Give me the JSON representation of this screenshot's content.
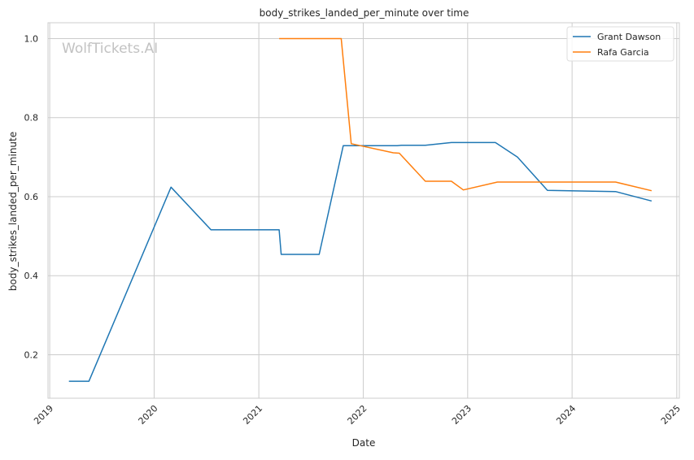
{
  "chart_data": {
    "type": "line",
    "title": "body_strikes_landed_per_minute over time",
    "xlabel": "Date",
    "ylabel": "body_strikes_landed_per_minute",
    "x_tick_labels": [
      "2019",
      "2020",
      "2021",
      "2022",
      "2023",
      "2024",
      "2025"
    ],
    "y_tick_labels": [
      "0.2",
      "0.4",
      "0.6",
      "0.8",
      "1.0"
    ],
    "y_ticks": [
      0.2,
      0.4,
      0.6,
      0.8,
      1.0
    ],
    "xlim": [
      "2018-12-26",
      "2025-01-10"
    ],
    "ylim": [
      0.09,
      1.04
    ],
    "grid": true,
    "legend_position": "top-right",
    "watermark": "WolfTickets.AI",
    "series": [
      {
        "name": "Grant Dawson",
        "color": "#1f77b4",
        "points": [
          {
            "x": "2019-03-09",
            "y": 0.133
          },
          {
            "x": "2019-05-18",
            "y": 0.133
          },
          {
            "x": "2020-02-29",
            "y": 0.624
          },
          {
            "x": "2020-07-18",
            "y": 0.516
          },
          {
            "x": "2021-03-13",
            "y": 0.516
          },
          {
            "x": "2021-03-20",
            "y": 0.454
          },
          {
            "x": "2021-07-31",
            "y": 0.454
          },
          {
            "x": "2021-10-23",
            "y": 0.729
          },
          {
            "x": "2022-04-30",
            "y": 0.729
          },
          {
            "x": "2022-05-14",
            "y": 0.73
          },
          {
            "x": "2022-08-06",
            "y": 0.73
          },
          {
            "x": "2022-11-05",
            "y": 0.737
          },
          {
            "x": "2023-04-08",
            "y": 0.737
          },
          {
            "x": "2023-06-24",
            "y": 0.7
          },
          {
            "x": "2023-10-07",
            "y": 0.616
          },
          {
            "x": "2024-06-01",
            "y": 0.613
          },
          {
            "x": "2024-10-05",
            "y": 0.589
          }
        ]
      },
      {
        "name": "Rafa Garcia",
        "color": "#ff7f0e",
        "points": [
          {
            "x": "2021-03-13",
            "y": 1.0
          },
          {
            "x": "2021-10-16",
            "y": 1.0
          },
          {
            "x": "2021-11-20",
            "y": 0.734
          },
          {
            "x": "2022-04-16",
            "y": 0.711
          },
          {
            "x": "2022-05-07",
            "y": 0.71
          },
          {
            "x": "2022-08-06",
            "y": 0.639
          },
          {
            "x": "2022-11-05",
            "y": 0.639
          },
          {
            "x": "2022-12-17",
            "y": 0.617
          },
          {
            "x": "2023-04-15",
            "y": 0.637
          },
          {
            "x": "2024-06-01",
            "y": 0.637
          },
          {
            "x": "2024-10-05",
            "y": 0.615
          }
        ]
      }
    ]
  }
}
